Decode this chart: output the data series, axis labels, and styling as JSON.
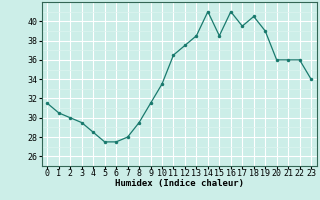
{
  "x": [
    0,
    1,
    2,
    3,
    4,
    5,
    6,
    7,
    8,
    9,
    10,
    11,
    12,
    13,
    14,
    15,
    16,
    17,
    18,
    19,
    20,
    21,
    22,
    23
  ],
  "y": [
    31.5,
    30.5,
    30.0,
    29.5,
    28.5,
    27.5,
    27.5,
    28.0,
    29.5,
    31.5,
    33.5,
    36.5,
    37.5,
    38.5,
    41.0,
    38.5,
    41.0,
    39.5,
    40.5,
    39.0,
    36.0,
    36.0,
    36.0,
    34.0
  ],
  "line_color": "#1a7a6e",
  "marker_color": "#1a7a6e",
  "bg_color": "#cceee8",
  "grid_major_color": "#ffffff",
  "grid_minor_color": "#ddf5f0",
  "xlabel": "Humidex (Indice chaleur)",
  "ylim": [
    25,
    42
  ],
  "yticks": [
    26,
    28,
    30,
    32,
    34,
    36,
    38,
    40
  ],
  "xticks": [
    0,
    1,
    2,
    3,
    4,
    5,
    6,
    7,
    8,
    9,
    10,
    11,
    12,
    13,
    14,
    15,
    16,
    17,
    18,
    19,
    20,
    21,
    22,
    23
  ],
  "font_size_xlabel": 6.5,
  "font_size_ticks": 6.0
}
